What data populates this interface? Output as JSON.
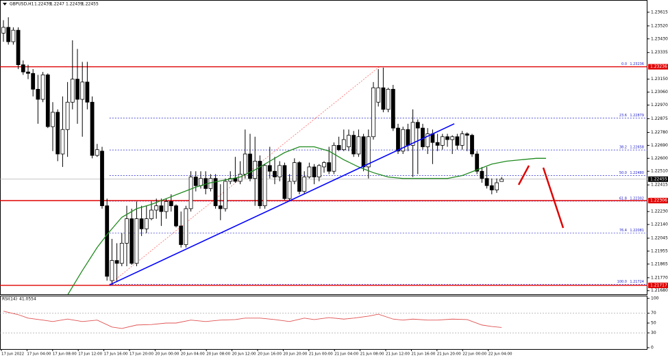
{
  "chart_data": {
    "type": "candlestick",
    "title": "GBPUSD,H1",
    "open": [
      1.2347,
      1.2351,
      1.2341,
      1.2349,
      1.2325,
      1.232,
      1.2319,
      1.2308,
      1.2301,
      1.2318,
      1.2282,
      1.2292,
      1.2263,
      1.228,
      1.2299,
      1.2315,
      1.2301,
      1.2313,
      1.2299,
      1.2262,
      1.2265,
      1.2227,
      1.2175,
      1.2189,
      1.2187,
      1.2201,
      1.2218,
      1.2187,
      1.2218,
      1.2211,
      1.2218,
      1.2224,
      1.2227,
      1.2223,
      1.223,
      1.2227,
      1.2213,
      1.22,
      1.2225,
      1.2247,
      1.2241,
      1.2246,
      1.2239,
      1.2246,
      1.2227,
      1.2225,
      1.2244,
      1.2246,
      1.2244,
      1.2249,
      1.2263,
      1.2246,
      1.2258,
      1.2227,
      1.2255,
      1.2251,
      1.2247,
      1.2255,
      1.2232,
      1.2244,
      1.2257,
      1.2237,
      1.2247,
      1.2254,
      1.2247,
      1.2254,
      1.2257,
      1.2251,
      1.2269,
      1.2266,
      1.2268,
      1.2276,
      1.2263,
      1.2275,
      1.2254,
      1.2275,
      1.2299,
      1.2309,
      1.2294,
      1.2308,
      1.2281,
      1.2265,
      1.228,
      1.2269,
      1.2285,
      1.2281,
      1.2268,
      1.2277,
      1.2271,
      1.2269,
      1.2275,
      1.2273,
      1.2275,
      1.2269,
      1.2277,
      1.2276,
      1.2263,
      1.2251,
      1.2246,
      1.2241,
      1.2238,
      1.22439
    ],
    "high": [
      1.2356,
      1.2358,
      1.2351,
      1.2351,
      1.2328,
      1.2325,
      1.2322,
      1.2318,
      1.232,
      1.2319,
      1.2299,
      1.2294,
      1.2303,
      1.2313,
      1.2342,
      1.2336,
      1.2327,
      1.2327,
      1.2303,
      1.227,
      1.2268,
      1.2232,
      1.2204,
      1.2201,
      1.2208,
      1.2227,
      1.2225,
      1.223,
      1.2227,
      1.2227,
      1.223,
      1.2232,
      1.2232,
      1.2232,
      1.2235,
      1.2228,
      1.2223,
      1.2227,
      1.2251,
      1.2251,
      1.2251,
      1.2251,
      1.2249,
      1.2249,
      1.2242,
      1.2246,
      1.2251,
      1.2261,
      1.2258,
      1.228,
      1.2277,
      1.2275,
      1.2262,
      1.2256,
      1.2268,
      1.2261,
      1.2258,
      1.2257,
      1.2249,
      1.226,
      1.2258,
      1.2251,
      1.2257,
      1.2256,
      1.2256,
      1.2258,
      1.2268,
      1.2271,
      1.2275,
      1.228,
      1.228,
      1.2279,
      1.228,
      1.2277,
      1.228,
      1.2313,
      1.2322,
      1.2323,
      1.2309,
      1.2311,
      1.2284,
      1.2282,
      1.2284,
      1.2294,
      1.2287,
      1.2284,
      1.2281,
      1.228,
      1.2277,
      1.2277,
      1.2277,
      1.2276,
      1.2277,
      1.2279,
      1.2278,
      1.2277,
      1.2265,
      1.2254,
      1.2254,
      1.2246,
      1.2246,
      1.2247
    ],
    "low": [
      1.2341,
      1.2339,
      1.2339,
      1.2322,
      1.2318,
      1.2315,
      1.2303,
      1.2284,
      1.2299,
      1.2281,
      1.2265,
      1.2258,
      1.2254,
      1.2261,
      1.2294,
      1.2284,
      1.2275,
      1.2294,
      1.226,
      1.2261,
      1.2225,
      1.2175,
      1.2172,
      1.2174,
      1.2185,
      1.2185,
      1.2186,
      1.2185,
      1.2206,
      1.2208,
      1.2217,
      1.2218,
      1.2213,
      1.2218,
      1.2223,
      1.2212,
      1.2198,
      1.2198,
      1.2223,
      1.2237,
      1.2239,
      1.2235,
      1.2237,
      1.2225,
      1.2217,
      1.2223,
      1.2242,
      1.2243,
      1.2242,
      1.2246,
      1.2244,
      1.2227,
      1.2225,
      1.2225,
      1.2246,
      1.2242,
      1.2244,
      1.2231,
      1.223,
      1.2242,
      1.2235,
      1.2235,
      1.2246,
      1.2242,
      1.2244,
      1.225,
      1.2249,
      1.2249,
      1.2265,
      1.2265,
      1.2265,
      1.2261,
      1.2261,
      1.2251,
      1.2246,
      1.2273,
      1.2296,
      1.2292,
      1.2292,
      1.2279,
      1.2263,
      1.2263,
      1.2265,
      1.2247,
      1.2249,
      1.2266,
      1.2263,
      1.2256,
      1.2265,
      1.2266,
      1.2268,
      1.2263,
      1.2266,
      1.2266,
      1.2265,
      1.2261,
      1.2249,
      1.2243,
      1.2239,
      1.2235,
      1.2236,
      1.22439
    ],
    "close": [
      1.2351,
      1.2341,
      1.2349,
      1.2325,
      1.232,
      1.2319,
      1.2308,
      1.2301,
      1.2318,
      1.2282,
      1.2292,
      1.2263,
      1.228,
      1.2299,
      1.2315,
      1.2301,
      1.2313,
      1.2299,
      1.2262,
      1.2266,
      1.2227,
      1.2178,
      1.2189,
      1.2187,
      1.2201,
      1.2218,
      1.2187,
      1.2218,
      1.2211,
      1.2218,
      1.2224,
      1.2227,
      1.2223,
      1.223,
      1.2227,
      1.2213,
      1.22,
      1.2225,
      1.2247,
      1.2241,
      1.2246,
      1.2239,
      1.2246,
      1.2227,
      1.2225,
      1.2244,
      1.2246,
      1.2244,
      1.2249,
      1.2263,
      1.2246,
      1.2258,
      1.2227,
      1.2255,
      1.2251,
      1.2247,
      1.2255,
      1.2232,
      1.2244,
      1.2257,
      1.2237,
      1.2247,
      1.2254,
      1.2247,
      1.2255,
      1.2257,
      1.2251,
      1.2269,
      1.2266,
      1.2273,
      1.2276,
      1.2263,
      1.2275,
      1.2254,
      1.2275,
      1.2309,
      1.2309,
      1.2294,
      1.2308,
      1.2281,
      1.2265,
      1.228,
      1.2269,
      1.2285,
      1.2281,
      1.2268,
      1.2277,
      1.2271,
      1.2269,
      1.2275,
      1.2273,
      1.2275,
      1.2269,
      1.2277,
      1.2276,
      1.2263,
      1.2251,
      1.2246,
      1.2241,
      1.2238,
      1.2243,
      1.22455
    ],
    "ylim": [
      1.21655,
      1.237
    ],
    "yticks": [
      1.23615,
      {
        "value": 1.2352,
        "label": "1.23520"
      },
      {
        "value": 1.2343,
        "label": "1.23430"
      },
      1.23335,
      {
        "value": 1.2315,
        "label": "1.23150"
      },
      {
        "value": 1.2306,
        "label": "1.23060"
      },
      {
        "value": 1.2297,
        "label": "1.22970"
      },
      1.22875,
      {
        "value": 1.2278,
        "label": "1.22780"
      },
      {
        "value": 1.2269,
        "label": "1.22690"
      },
      {
        "value": 1.226,
        "label": "1.22600"
      },
      {
        "value": 1.2251,
        "label": "1.22510"
      },
      1.22415,
      {
        "value": 1.2223,
        "label": "1.22230"
      },
      {
        "value": 1.2214,
        "label": "1.22140"
      },
      1.22045,
      1.21955,
      1.21865,
      {
        "value": 1.2177,
        "label": "1.21770"
      },
      {
        "value": 1.2168,
        "label": "1.21680"
      }
    ],
    "time_labels": [
      "17 Jun 2022",
      "17 Jun 04:00",
      "17 Jun 08:00",
      "17 Jun 12:00",
      "17 Jun 16:00",
      "17 Jun 20:00",
      "20 Jun 00:00",
      "20 Jun 04:00",
      "20 Jun 08:00",
      "20 Jun 12:00",
      "20 Jun 16:00",
      "20 Jun 20:00",
      "21 Jun 00:00",
      "21 Jun 04:00",
      "21 Jun 08:00",
      "21 Jun 12:00",
      "21 Jun 16:00",
      "21 Jun 20:00",
      "22 Jun 00:00",
      "22 Jun 04:00"
    ],
    "moving_average": {
      "color": "#1f8a1f",
      "x": [
        13,
        16,
        19,
        21,
        24,
        27,
        30,
        33,
        36,
        39,
        42,
        45,
        48,
        51,
        54,
        57,
        60,
        63,
        66,
        69,
        72,
        75,
        78,
        81,
        84,
        87,
        90,
        93,
        96,
        99,
        102,
        105,
        108,
        110
      ],
      "values": [
        1.2165,
        1.2182,
        1.2198,
        1.2207,
        1.2219,
        1.2225,
        1.2228,
        1.2232,
        1.2236,
        1.224,
        1.2243,
        1.2245,
        1.2247,
        1.2252,
        1.2258,
        1.2264,
        1.2268,
        1.2268,
        1.2265,
        1.2259,
        1.2254,
        1.225,
        1.2247,
        1.2246,
        1.2246,
        1.2246,
        1.2246,
        1.2248,
        1.2252,
        1.2256,
        1.2258,
        1.2259,
        1.226,
        1.226
      ]
    },
    "trendline": {
      "color": "#0000ff",
      "x": [
        21.5,
        91.4
      ],
      "values": [
        1.2172,
        1.2284
      ]
    },
    "fib_anchor": {
      "color": "#ff6666",
      "x": [
        21.5,
        76.2
      ],
      "values": [
        1.21724,
        1.23236
      ]
    },
    "levels": {
      "color": "#e00000",
      "values": [
        1.23236,
        1.22306,
        1.21717
      ]
    },
    "fibonacci": {
      "color": "#2020cc",
      "levels": [
        {
          "ratio": "0.0",
          "price": 1.23236
        },
        {
          "ratio": "23.6",
          "price": 1.22879
        },
        {
          "ratio": "38.2",
          "price": 1.22658
        },
        {
          "ratio": "50.0",
          "price": {
            "value": 1.2248,
            "label": "1.22480"
          }
        },
        {
          "ratio": "61.8",
          "price": 1.22302
        },
        {
          "ratio": "76.4",
          "price": 1.22081
        },
        {
          "ratio": "100.0",
          "price": 1.21724
        }
      ]
    },
    "rsi": {
      "name": "RSI(14)",
      "color": "#e05050",
      "ylim": [
        0,
        100
      ],
      "yticks": [
        100,
        70,
        50,
        30,
        0
      ],
      "levels": [
        70,
        30
      ],
      "x": [
        0,
        3,
        5,
        8,
        10,
        13,
        16,
        19,
        22,
        24,
        27,
        30,
        33,
        35,
        38,
        41,
        44,
        47,
        49,
        52,
        55,
        58,
        61,
        63,
        66,
        69,
        71,
        74,
        76,
        79,
        81,
        83,
        86,
        88,
        91,
        94,
        97,
        99,
        101
      ],
      "values": [
        74,
        67,
        60,
        56,
        53,
        58,
        53,
        56,
        42,
        39,
        46,
        47,
        50,
        50,
        56,
        53,
        56,
        57,
        60,
        60,
        57,
        53,
        60,
        57,
        61,
        58,
        60,
        64,
        68,
        58,
        56,
        58,
        56,
        56,
        58,
        57,
        46,
        43,
        41.0554
      ]
    }
  }
}
